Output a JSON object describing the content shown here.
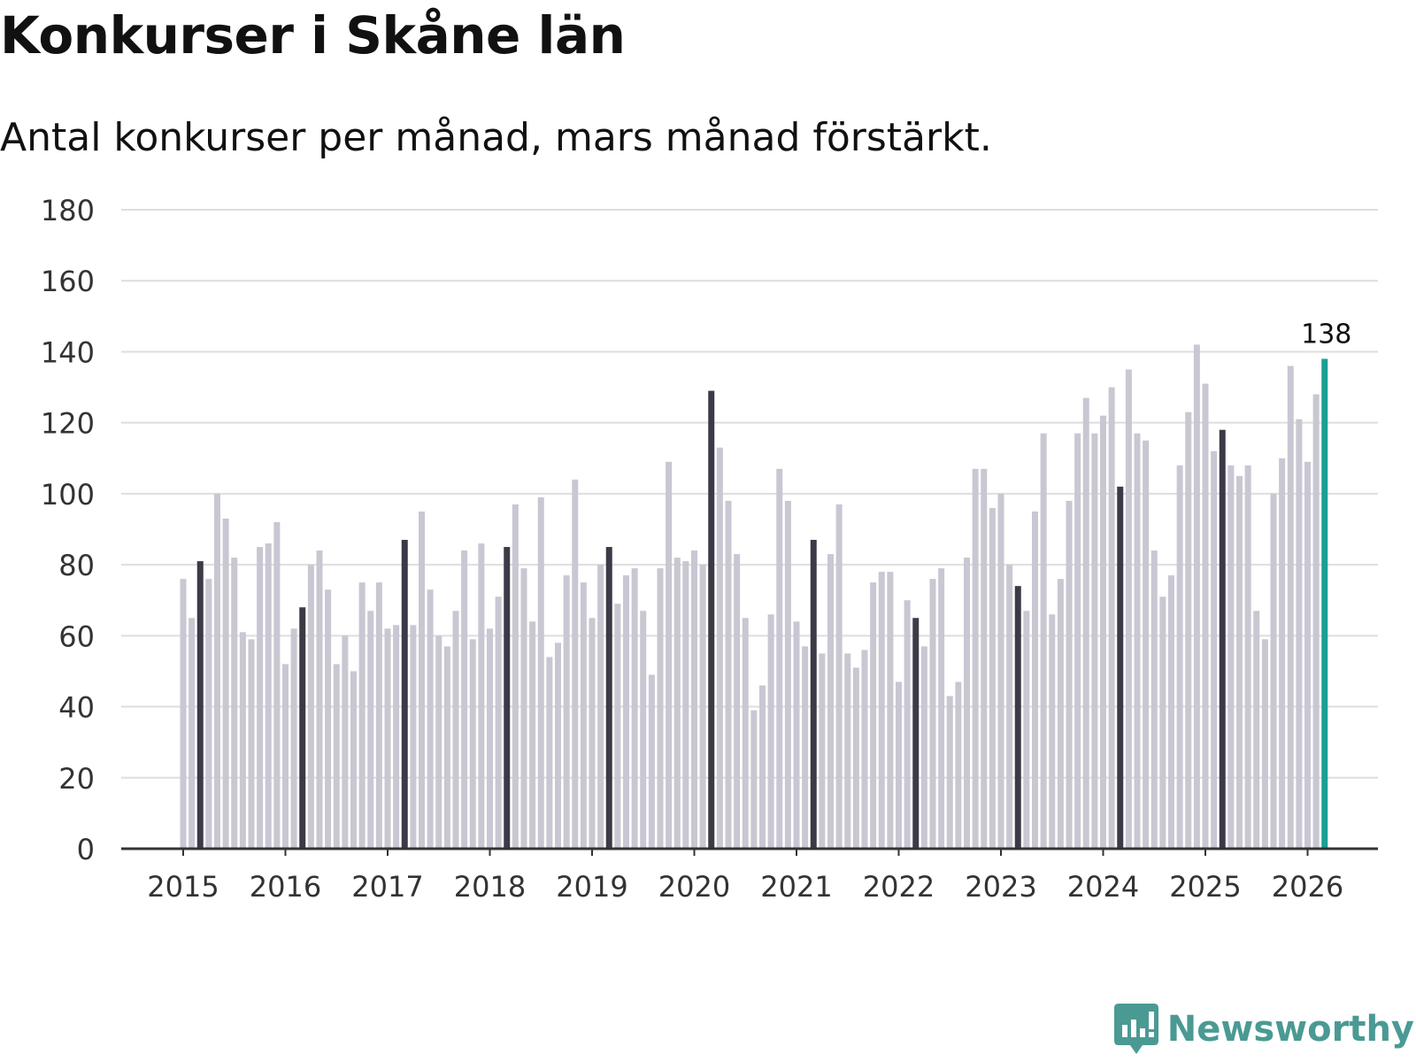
{
  "colors": {
    "background": "#ffffff",
    "bar_default": "#c8c7d2",
    "bar_march": "#3b3a47",
    "bar_highlight": "#1a9f94",
    "gridline": "#dedede",
    "axis": "#333333",
    "brand": "#4a9a93"
  },
  "chart_data": {
    "type": "bar",
    "title": "Konkurser i Skåne län",
    "subtitle": "Antal konkurser per månad, mars månad förstärkt.",
    "xlabel": "",
    "ylabel": "",
    "ylim": [
      0,
      180
    ],
    "yticks": [
      "0",
      "20",
      "40",
      "60",
      "80",
      "100",
      "120",
      "140",
      "160",
      "180"
    ],
    "xticks": [
      "2015",
      "2016",
      "2017",
      "2018",
      "2019",
      "2020",
      "2021",
      "2022",
      "2023",
      "2024",
      "2025",
      "2026"
    ],
    "start": "2015-01",
    "frequency": "monthly",
    "highlight_rule": "March bars emphasized (dark); latest month highlighted (teal)",
    "values": [
      76,
      65,
      81,
      76,
      100,
      93,
      82,
      61,
      59,
      85,
      86,
      92,
      52,
      62,
      68,
      80,
      84,
      73,
      52,
      60,
      50,
      75,
      67,
      75,
      62,
      63,
      87,
      63,
      95,
      73,
      60,
      57,
      67,
      84,
      59,
      86,
      62,
      71,
      85,
      97,
      79,
      64,
      99,
      54,
      58,
      77,
      104,
      75,
      65,
      80,
      85,
      69,
      77,
      79,
      67,
      49,
      79,
      109,
      82,
      81,
      84,
      80,
      129,
      113,
      98,
      83,
      65,
      39,
      46,
      66,
      107,
      98,
      64,
      57,
      87,
      55,
      83,
      97,
      55,
      51,
      56,
      75,
      78,
      78,
      47,
      70,
      65,
      57,
      76,
      79,
      43,
      47,
      82,
      107,
      107,
      96,
      100,
      80,
      74,
      67,
      95,
      117,
      66,
      76,
      98,
      117,
      127,
      117,
      122,
      130,
      102,
      135,
      117,
      115,
      84,
      71,
      77,
      108,
      123,
      142,
      131,
      112,
      118,
      108,
      105,
      108,
      67,
      59,
      100,
      110,
      136,
      121,
      109,
      128,
      138
    ],
    "annotations": [
      {
        "label": "138",
        "target": "last_bar"
      }
    ]
  },
  "brand": {
    "name": "Newsworthy",
    "icon": "newsworthy-logo-icon"
  }
}
